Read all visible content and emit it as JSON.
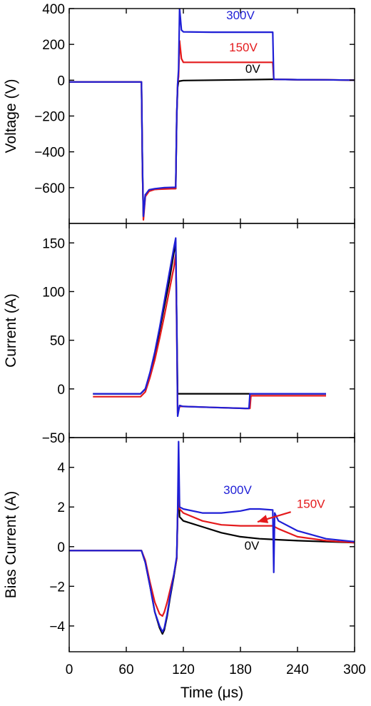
{
  "colors": {
    "0V": "#000000",
    "150V": "#e41a1c",
    "300V": "#1f1fd6"
  },
  "chart_data": [
    {
      "type": "line",
      "ylabel": "Voltage (V)",
      "xlabel": "",
      "xlim": [
        0,
        300
      ],
      "ylim": [
        -800,
        400
      ],
      "yticks": [
        -600,
        -400,
        -200,
        0,
        200,
        400
      ],
      "yticklabels": [
        "−600",
        "−400",
        "−200",
        "0",
        "200",
        "400"
      ],
      "series": [
        {
          "name": "0V",
          "color": "#000000",
          "x": [
            0,
            76,
            77,
            78,
            80,
            84,
            90,
            100,
            112,
            113,
            114,
            115,
            116,
            120,
            150,
            180,
            214,
            240,
            270,
            300
          ],
          "y": [
            -10,
            -10,
            -500,
            -760,
            -640,
            -615,
            -610,
            -605,
            -605,
            -200,
            -40,
            -5,
            -5,
            -2,
            0,
            2,
            5,
            3,
            2,
            0
          ]
        },
        {
          "name": "150V",
          "color": "#e41a1c",
          "x": [
            0,
            76,
            77,
            78,
            80,
            84,
            90,
            100,
            112,
            113,
            114,
            115,
            116,
            118,
            120,
            150,
            180,
            214,
            215,
            240,
            270,
            300
          ],
          "y": [
            -10,
            -10,
            -500,
            -780,
            -650,
            -620,
            -610,
            -608,
            -605,
            -200,
            -20,
            20,
            220,
            120,
            100,
            100,
            100,
            100,
            5,
            3,
            2,
            0
          ]
        },
        {
          "name": "300V",
          "color": "#1f1fd6",
          "x": [
            0,
            76,
            77,
            78,
            80,
            84,
            90,
            100,
            112,
            113,
            114,
            115,
            116,
            118,
            120,
            150,
            180,
            214,
            215,
            240,
            270,
            300
          ],
          "y": [
            -10,
            -10,
            -480,
            -760,
            -640,
            -612,
            -606,
            -600,
            -598,
            -200,
            -20,
            60,
            400,
            280,
            270,
            268,
            268,
            268,
            5,
            3,
            2,
            0
          ]
        }
      ],
      "annotations": [
        {
          "text": "300V",
          "x": 180,
          "y": 340,
          "color": "#1f1fd6"
        },
        {
          "text": "150V",
          "x": 183,
          "y": 160,
          "color": "#e41a1c"
        },
        {
          "text": "0V",
          "x": 193,
          "y": 42,
          "color": "#000000"
        }
      ]
    },
    {
      "type": "line",
      "ylabel": "Current (A)",
      "xlabel": "",
      "xlim": [
        0,
        300
      ],
      "ylim": [
        -50,
        170
      ],
      "yticks": [
        -50,
        0,
        50,
        100,
        150
      ],
      "yticklabels": [
        "−50",
        "0",
        "50",
        "100",
        "150"
      ],
      "series": [
        {
          "name": "0V",
          "color": "#000000",
          "x": [
            25,
            60,
            75,
            80,
            85,
            90,
            95,
            100,
            105,
            110,
            112,
            113,
            114,
            116,
            120,
            150,
            190,
            191,
            230,
            270
          ],
          "y": [
            -5,
            -5,
            -5,
            0,
            15,
            35,
            60,
            85,
            110,
            140,
            150,
            70,
            -5,
            -5,
            -5,
            -5,
            -5,
            -5,
            -5,
            -5
          ]
        },
        {
          "name": "150V",
          "color": "#e41a1c",
          "x": [
            25,
            60,
            75,
            80,
            85,
            90,
            95,
            100,
            105,
            110,
            112,
            113,
            114,
            116,
            120,
            150,
            185,
            190,
            191,
            230,
            270
          ],
          "y": [
            -8,
            -8,
            -8,
            -3,
            12,
            30,
            52,
            75,
            100,
            125,
            138,
            60,
            -25,
            -18,
            -18,
            -19,
            -20,
            -20,
            -7,
            -7,
            -7
          ]
        },
        {
          "name": "300V",
          "color": "#1f1fd6",
          "x": [
            25,
            60,
            75,
            80,
            85,
            90,
            95,
            100,
            105,
            110,
            112,
            113,
            114,
            116,
            120,
            150,
            185,
            189,
            190,
            230,
            270
          ],
          "y": [
            -5,
            -5,
            -5,
            0,
            17,
            38,
            63,
            90,
            118,
            145,
            155,
            70,
            -28,
            -17,
            -18,
            -19,
            -20,
            -20,
            -5,
            -5,
            -5
          ]
        }
      ],
      "annotations": []
    },
    {
      "type": "line",
      "ylabel": "Bias Current (A)",
      "xlabel": "Time (μs)",
      "xlim": [
        0,
        300
      ],
      "ylim": [
        -5.3,
        5.5
      ],
      "xticks": [
        0,
        60,
        120,
        180,
        240,
        300
      ],
      "xticklabels": [
        "0",
        "60",
        "120",
        "180",
        "240",
        "300"
      ],
      "yticks": [
        -4,
        -2,
        0,
        2,
        4
      ],
      "yticklabels": [
        "−4",
        "−2",
        "0",
        "2",
        "4"
      ],
      "series": [
        {
          "name": "0V",
          "color": "#000000",
          "x": [
            0,
            76,
            80,
            85,
            90,
            95,
            98,
            100,
            103,
            106,
            110,
            113,
            114,
            115,
            116,
            120,
            140,
            160,
            180,
            200,
            220,
            240,
            270,
            300
          ],
          "y": [
            -0.2,
            -0.2,
            -0.8,
            -2,
            -3.3,
            -4.1,
            -4.4,
            -4.2,
            -3.5,
            -2.6,
            -1.5,
            -0.6,
            1.6,
            3,
            1.5,
            1.3,
            1,
            0.7,
            0.5,
            0.4,
            0.35,
            0.3,
            0.25,
            0.2
          ]
        },
        {
          "name": "150V",
          "color": "#e41a1c",
          "x": [
            0,
            76,
            80,
            85,
            90,
            95,
            98,
            100,
            103,
            106,
            110,
            113,
            114,
            115,
            116,
            120,
            140,
            160,
            180,
            200,
            214,
            220,
            240,
            270,
            300
          ],
          "y": [
            -0.2,
            -0.2,
            -0.7,
            -1.8,
            -2.8,
            -3.4,
            -3.5,
            -3.3,
            -2.8,
            -2.2,
            -1.4,
            -0.6,
            1.5,
            4,
            1.9,
            1.7,
            1.3,
            1.1,
            1.05,
            1.05,
            1.05,
            0.9,
            0.5,
            0.3,
            0.2
          ]
        },
        {
          "name": "300V",
          "color": "#1f1fd6",
          "x": [
            0,
            76,
            80,
            85,
            90,
            95,
            98,
            100,
            103,
            106,
            110,
            113,
            114,
            115,
            116,
            120,
            140,
            160,
            180,
            190,
            200,
            214,
            215,
            216,
            220,
            240,
            270,
            300
          ],
          "y": [
            -0.2,
            -0.2,
            -0.8,
            -2,
            -3.3,
            -4,
            -4.3,
            -4.1,
            -3.4,
            -2.5,
            -1.4,
            -0.5,
            1.8,
            5.3,
            2,
            1.9,
            1.7,
            1.7,
            1.8,
            1.9,
            1.9,
            1.85,
            -1.3,
            1.7,
            1.3,
            0.8,
            0.4,
            0.25
          ]
        }
      ],
      "annotations": [
        {
          "text": "300V",
          "x": 177,
          "y": 2.65,
          "color": "#1f1fd6"
        },
        {
          "text": "150V",
          "x": 254,
          "y": 1.95,
          "color": "#e41a1c"
        },
        {
          "text": "0V",
          "x": 192,
          "y": -0.15,
          "color": "#000000"
        }
      ],
      "arrow": {
        "from": [
          233,
          1.75
        ],
        "to": [
          198,
          1.25
        ],
        "color": "#e41a1c"
      }
    }
  ]
}
